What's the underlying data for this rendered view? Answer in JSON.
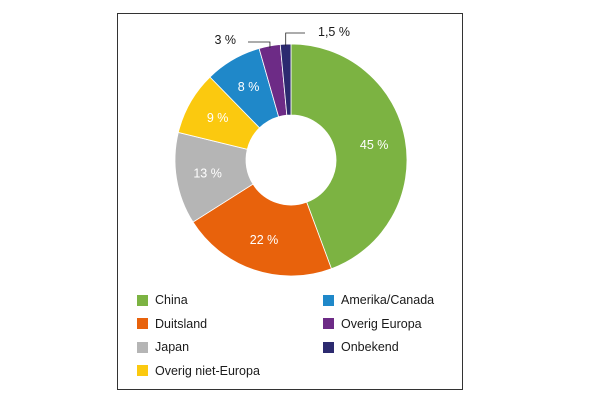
{
  "chart_data": {
    "type": "pie",
    "donut": true,
    "title": "",
    "categories": [
      "China",
      "Duitsland",
      "Japan",
      "Overig niet-Europa",
      "Amerika/Canada",
      "Overig Europa",
      "Onbekend"
    ],
    "values": [
      45,
      22,
      13,
      9,
      8,
      3,
      1.5
    ],
    "value_labels": [
      "45 %",
      "22 %",
      "13 %",
      "9 %",
      "8 %",
      "3 %",
      "1,5 %"
    ],
    "colors": [
      "#7cb342",
      "#e8620c",
      "#b5b5b5",
      "#fbc90f",
      "#1f88c9",
      "#6d2b86",
      "#2c2a6f"
    ],
    "legend_position": "bottom",
    "legend_columns": [
      [
        "China",
        "Duitsland",
        "Japan",
        "Overig niet-Europa"
      ],
      [
        "Amerika/Canada",
        "Overig Europa",
        "Onbekend"
      ]
    ]
  }
}
